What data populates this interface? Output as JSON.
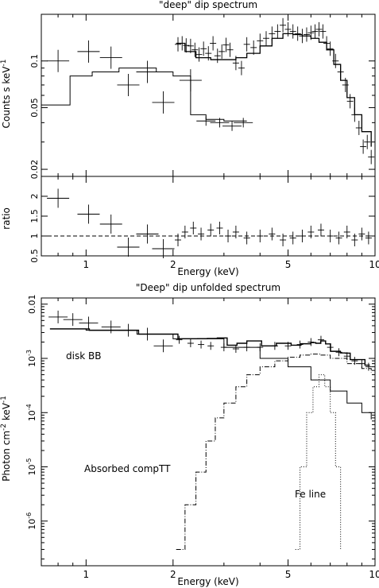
{
  "top": {
    "title": "\"deep\" dip spectrum",
    "ylabel_pre": "Counts s",
    "ylabel_mid": " keV",
    "ylabel_sup": "-1",
    "ratio_label": "ratio",
    "xlabel": "Energy (keV)"
  },
  "bottom": {
    "title": "\"Deep\" dip unfolded spectrum",
    "ylabel_pre": "Photon cm",
    "ylabel_sup1": "-2",
    "ylabel_mid": " keV",
    "ylabel_sup2": "-1",
    "xlabel": "Energy (keV)",
    "annot_diskbb": "disk BB",
    "annot_comptt": "Absorbed compTT",
    "annot_fe": "Fe line"
  },
  "chart_data": [
    {
      "type": "scatter",
      "title": "\"deep\" dip spectrum",
      "xlabel": "Energy (keV)",
      "ylabel": "Counts s^-1 keV^-1",
      "xscale": "log",
      "yscale": "log",
      "xlim": [
        0.7,
        10
      ],
      "ylim": [
        0.018,
        0.2
      ],
      "x_ticks": [
        "1",
        "2",
        "5",
        "10"
      ],
      "y_ticks": [
        "0.02",
        "0.05",
        "0.1"
      ],
      "series": [
        {
          "data": [
            [
              0.8,
              0.1
            ],
            [
              1.02,
              0.115
            ],
            [
              1.22,
              0.105
            ],
            [
              1.4,
              0.07
            ],
            [
              1.63,
              0.085
            ],
            [
              1.85,
              0.054
            ],
            [
              2.3,
              0.075
            ],
            [
              2.08,
              0.128
            ],
            [
              2.15,
              0.13
            ],
            [
              2.22,
              0.126
            ],
            [
              2.3,
              0.125
            ],
            [
              2.38,
              0.118
            ],
            [
              2.46,
              0.11
            ],
            [
              2.55,
              0.12
            ],
            [
              2.65,
              0.112
            ],
            [
              2.75,
              0.13
            ],
            [
              2.85,
              0.108
            ],
            [
              2.95,
              0.115
            ],
            [
              3.05,
              0.127
            ],
            [
              3.15,
              0.118
            ],
            [
              3.3,
              0.097
            ],
            [
              3.45,
              0.09
            ],
            [
              3.6,
              0.128
            ],
            [
              3.8,
              0.122
            ],
            [
              4.0,
              0.135
            ],
            [
              4.2,
              0.14
            ],
            [
              4.4,
              0.15
            ],
            [
              4.6,
              0.155
            ],
            [
              4.8,
              0.17
            ],
            [
              5.0,
              0.16
            ],
            [
              5.2,
              0.155
            ],
            [
              5.4,
              0.15
            ],
            [
              5.6,
              0.145
            ],
            [
              5.8,
              0.148
            ],
            [
              6.0,
              0.152
            ],
            [
              6.2,
              0.155
            ],
            [
              6.4,
              0.16
            ],
            [
              6.6,
              0.155
            ],
            [
              6.8,
              0.13
            ],
            [
              7.0,
              0.12
            ],
            [
              7.3,
              0.1
            ],
            [
              7.6,
              0.085
            ],
            [
              7.9,
              0.07
            ],
            [
              8.2,
              0.055
            ],
            [
              8.5,
              0.045
            ],
            [
              8.8,
              0.037
            ],
            [
              9.1,
              0.028
            ],
            [
              9.4,
              0.03
            ],
            [
              9.7,
              0.024
            ]
          ]
        },
        {
          "data": [
            [
              2.6,
              0.041
            ],
            [
              2.9,
              0.04
            ],
            [
              3.2,
              0.038
            ],
            [
              3.5,
              0.04
            ]
          ]
        }
      ]
    },
    {
      "type": "scatter",
      "ylabel": "ratio",
      "xlabel": "Energy (keV)",
      "xscale": "log",
      "xlim": [
        0.7,
        10
      ],
      "ylim": [
        0.5,
        2.5
      ],
      "y_ticks": [
        "0.5",
        "1",
        "1.5",
        "2"
      ],
      "reference_line": 1,
      "data": [
        [
          0.8,
          1.95
        ],
        [
          1.02,
          1.55
        ],
        [
          1.22,
          1.3
        ],
        [
          1.4,
          0.72
        ],
        [
          1.63,
          1.05
        ],
        [
          1.85,
          0.68
        ],
        [
          2.08,
          0.9
        ],
        [
          2.2,
          1.1
        ],
        [
          2.35,
          1.2
        ],
        [
          2.5,
          1.05
        ],
        [
          2.7,
          1.15
        ],
        [
          2.9,
          1.2
        ],
        [
          3.1,
          1.0
        ],
        [
          3.3,
          1.1
        ],
        [
          3.6,
          0.95
        ],
        [
          4.0,
          1.0
        ],
        [
          4.4,
          1.05
        ],
        [
          4.8,
          0.9
        ],
        [
          5.2,
          0.95
        ],
        [
          5.6,
          1.0
        ],
        [
          6.0,
          1.1
        ],
        [
          6.5,
          1.15
        ],
        [
          7.0,
          1.0
        ],
        [
          7.5,
          0.95
        ],
        [
          8.0,
          1.1
        ],
        [
          8.5,
          0.9
        ],
        [
          9.0,
          1.05
        ],
        [
          9.5,
          0.95
        ]
      ]
    },
    {
      "type": "line",
      "title": "\"Deep\" dip unfolded spectrum",
      "xlabel": "Energy (keV)",
      "ylabel": "Photon cm^-2 keV^-1",
      "xscale": "log",
      "yscale": "log",
      "xlim": [
        0.7,
        10
      ],
      "ylim": [
        1.5e-07,
        0.013
      ],
      "x_ticks": [
        "1",
        "2",
        "5",
        "10"
      ],
      "y_ticks": [
        "10^-6",
        "10^-5",
        "10^-4",
        "10^-3",
        "0.01"
      ],
      "data_points": [
        [
          0.8,
          0.0058
        ],
        [
          0.9,
          0.0052
        ],
        [
          1.02,
          0.0045
        ],
        [
          1.22,
          0.0038
        ],
        [
          1.4,
          0.0033
        ],
        [
          1.63,
          0.0028
        ],
        [
          1.85,
          0.0017
        ],
        [
          2.1,
          0.0022
        ],
        [
          2.3,
          0.0019
        ],
        [
          2.5,
          0.0018
        ],
        [
          2.7,
          0.0017
        ],
        [
          3.0,
          0.0016
        ],
        [
          3.3,
          0.0015
        ],
        [
          3.6,
          0.0016
        ],
        [
          4.0,
          0.0016
        ],
        [
          4.5,
          0.0017
        ],
        [
          5.0,
          0.0017
        ],
        [
          5.5,
          0.0018
        ],
        [
          6.0,
          0.002
        ],
        [
          6.5,
          0.0022
        ],
        [
          7.0,
          0.0016
        ],
        [
          7.5,
          0.0013
        ],
        [
          8.0,
          0.0011
        ],
        [
          8.5,
          0.0009
        ],
        [
          9.0,
          0.0008
        ],
        [
          9.5,
          0.0007
        ]
      ],
      "components": [
        {
          "name": "disk BB",
          "data": [
            [
              0.75,
              0.0035
            ],
            [
              1.0,
              0.0033
            ],
            [
              1.5,
              0.0028
            ],
            [
              2.0,
              0.0023
            ],
            [
              3.0,
              0.0016
            ],
            [
              4.0,
              0.001
            ],
            [
              5.0,
              0.0007
            ],
            [
              6.0,
              0.0004
            ],
            [
              7.0,
              0.00025
            ],
            [
              8.0,
              0.00015
            ],
            [
              9.0,
              0.0001
            ],
            [
              9.7,
              7.5e-05
            ]
          ]
        },
        {
          "name": "Absorbed compTT",
          "data": [
            [
              2.05,
              3e-07
            ],
            [
              2.2,
              2e-06
            ],
            [
              2.4,
              8e-06
            ],
            [
              2.6,
              3e-05
            ],
            [
              2.8,
              8e-05
            ],
            [
              3.0,
              0.00015
            ],
            [
              3.3,
              0.0003
            ],
            [
              3.6,
              0.0005
            ],
            [
              4.0,
              0.0007
            ],
            [
              4.5,
              0.0009
            ],
            [
              5.0,
              0.00105
            ],
            [
              5.5,
              0.00115
            ],
            [
              6.0,
              0.0012
            ],
            [
              6.5,
              0.00115
            ],
            [
              7.0,
              0.001
            ],
            [
              8.0,
              0.0008
            ],
            [
              9.0,
              0.00065
            ],
            [
              9.7,
              0.00055
            ]
          ]
        },
        {
          "name": "Fe line",
          "data": [
            [
              5.3,
              3e-07
            ],
            [
              5.5,
              1e-05
            ],
            [
              5.8,
              0.0001
            ],
            [
              6.1,
              0.0003
            ],
            [
              6.4,
              0.0005
            ],
            [
              6.7,
              0.0003
            ],
            [
              7.0,
              0.0001
            ],
            [
              7.3,
              1e-05
            ],
            [
              7.6,
              3e-07
            ]
          ]
        }
      ]
    }
  ]
}
